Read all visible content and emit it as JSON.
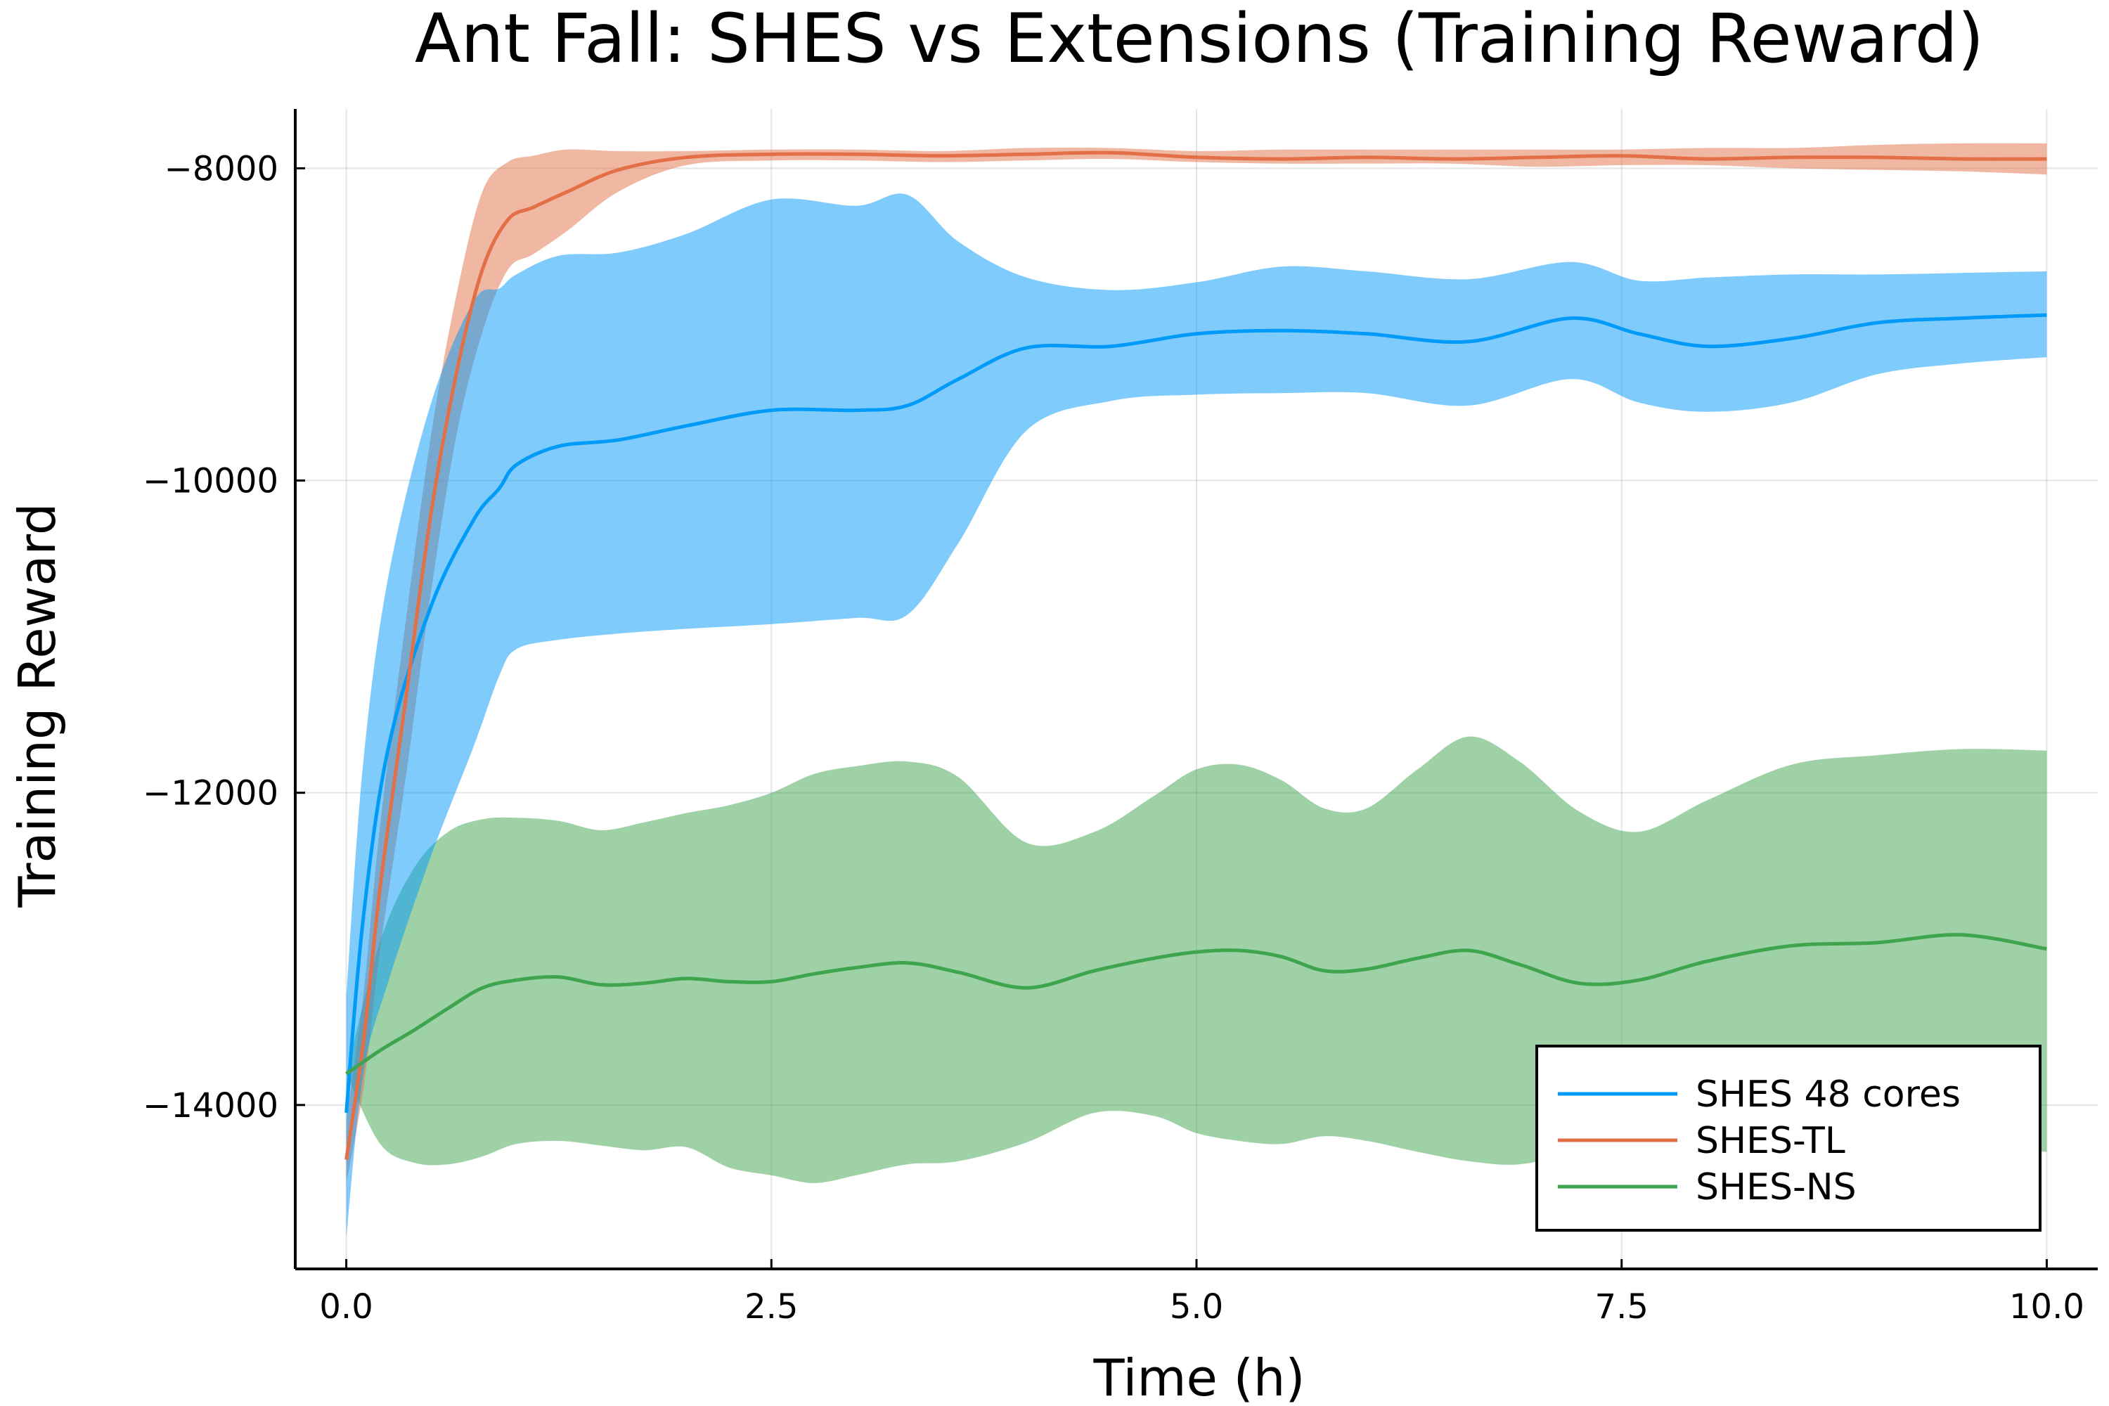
{
  "chart_data": {
    "type": "line",
    "title": "Ant Fall: SHES vs Extensions (Training Reward)",
    "xlabel": "Time (h)",
    "ylabel": "Training Reward",
    "xlim": [
      -0.3,
      10.3
    ],
    "ylim": [
      -15050,
      -7620
    ],
    "xticks": [
      0.0,
      2.5,
      5.0,
      7.5,
      10.0
    ],
    "xtick_labels": [
      "0.0",
      "2.5",
      "5.0",
      "7.5",
      "10.0"
    ],
    "yticks": [
      -14000,
      -12000,
      -10000,
      -8000
    ],
    "ytick_labels": [
      "−14000",
      "−12000",
      "−10000",
      "−8000"
    ],
    "grid": true,
    "legend": {
      "position": "bottom-right"
    },
    "series": [
      {
        "name": "SHES 48 cores",
        "color": "#009af9",
        "band_color": "#009af9",
        "band_opacity": 0.5,
        "x": [
          0.0,
          0.1,
          0.25,
          0.5,
          0.75,
          0.9,
          1.0,
          1.25,
          1.6,
          2.0,
          2.5,
          3.0,
          3.3,
          3.6,
          4.0,
          4.5,
          5.0,
          5.5,
          6.0,
          6.6,
          7.2,
          7.6,
          8.0,
          8.5,
          9.0,
          9.5,
          10.0
        ],
        "mean": [
          -14050,
          -12800,
          -11700,
          -10800,
          -10250,
          -10050,
          -9900,
          -9780,
          -9740,
          -9650,
          -9550,
          -9550,
          -9520,
          -9350,
          -9150,
          -9140,
          -9060,
          -9040,
          -9060,
          -9110,
          -8960,
          -9060,
          -9140,
          -9090,
          -8990,
          -8960,
          -8940
        ],
        "lower": [
          -14850,
          -13800,
          -13200,
          -12400,
          -11700,
          -11250,
          -11080,
          -11020,
          -10980,
          -10950,
          -10920,
          -10880,
          -10860,
          -10400,
          -9680,
          -9490,
          -9450,
          -9440,
          -9440,
          -9520,
          -9350,
          -9500,
          -9560,
          -9500,
          -9320,
          -9250,
          -9210
        ],
        "upper": [
          -13300,
          -11800,
          -10600,
          -9500,
          -8850,
          -8770,
          -8680,
          -8560,
          -8540,
          -8420,
          -8200,
          -8240,
          -8170,
          -8470,
          -8700,
          -8780,
          -8730,
          -8630,
          -8660,
          -8710,
          -8600,
          -8720,
          -8700,
          -8680,
          -8680,
          -8670,
          -8660
        ]
      },
      {
        "name": "SHES-TL",
        "color": "#e26f46",
        "band_color": "#e26f46",
        "band_opacity": 0.5,
        "x": [
          0.0,
          0.1,
          0.2,
          0.35,
          0.5,
          0.65,
          0.8,
          0.95,
          1.1,
          1.3,
          1.6,
          2.0,
          2.5,
          3.0,
          3.5,
          4.0,
          4.5,
          5.0,
          5.5,
          6.0,
          6.5,
          7.0,
          7.5,
          8.0,
          8.5,
          9.0,
          9.5,
          10.0
        ],
        "mean": [
          -14350,
          -13600,
          -12600,
          -11400,
          -10200,
          -9300,
          -8650,
          -8330,
          -8250,
          -8150,
          -8010,
          -7930,
          -7910,
          -7910,
          -7920,
          -7910,
          -7900,
          -7930,
          -7940,
          -7930,
          -7940,
          -7930,
          -7920,
          -7940,
          -7930,
          -7930,
          -7940,
          -7940
        ],
        "lower": [
          -14500,
          -13900,
          -13000,
          -11900,
          -10700,
          -9700,
          -9050,
          -8650,
          -8550,
          -8400,
          -8150,
          -7980,
          -7950,
          -7950,
          -7960,
          -7950,
          -7940,
          -7960,
          -7970,
          -7970,
          -7970,
          -7990,
          -7980,
          -7980,
          -8000,
          -8010,
          -8020,
          -8040
        ],
        "upper": [
          -14100,
          -13300,
          -12200,
          -10900,
          -9700,
          -8800,
          -8150,
          -7960,
          -7920,
          -7880,
          -7890,
          -7890,
          -7880,
          -7880,
          -7890,
          -7870,
          -7870,
          -7890,
          -7880,
          -7880,
          -7880,
          -7880,
          -7880,
          -7870,
          -7870,
          -7850,
          -7840,
          -7840
        ]
      },
      {
        "name": "SHES-NS",
        "color": "#3ea44e",
        "band_color": "#3ea44e",
        "band_opacity": 0.5,
        "x": [
          0.0,
          0.2,
          0.4,
          0.6,
          0.8,
          1.0,
          1.25,
          1.5,
          1.75,
          2.0,
          2.25,
          2.5,
          2.75,
          3.0,
          3.3,
          3.6,
          4.0,
          4.4,
          4.75,
          5.0,
          5.25,
          5.5,
          5.75,
          6.0,
          6.3,
          6.6,
          6.9,
          7.25,
          7.6,
          8.0,
          8.5,
          9.0,
          9.5,
          10.0
        ],
        "mean": [
          -13800,
          -13650,
          -13520,
          -13380,
          -13250,
          -13200,
          -13180,
          -13230,
          -13220,
          -13190,
          -13210,
          -13210,
          -13160,
          -13120,
          -13090,
          -13150,
          -13250,
          -13140,
          -13060,
          -13020,
          -13010,
          -13050,
          -13140,
          -13130,
          -13060,
          -13010,
          -13100,
          -13220,
          -13200,
          -13080,
          -12980,
          -12960,
          -12910,
          -13000
        ],
        "lower": [
          -13800,
          -14250,
          -14370,
          -14380,
          -14330,
          -14250,
          -14230,
          -14260,
          -14290,
          -14270,
          -14400,
          -14450,
          -14500,
          -14450,
          -14380,
          -14360,
          -14240,
          -14050,
          -14070,
          -14180,
          -14230,
          -14250,
          -14200,
          -14230,
          -14300,
          -14360,
          -14380,
          -14300,
          -14250,
          -14300,
          -14400,
          -14270,
          -14280,
          -14300
        ],
        "upper": [
          -13800,
          -12950,
          -12480,
          -12250,
          -12170,
          -12160,
          -12180,
          -12240,
          -12190,
          -12130,
          -12080,
          -12000,
          -11880,
          -11830,
          -11800,
          -11900,
          -12320,
          -12250,
          -12020,
          -11850,
          -11820,
          -11920,
          -12100,
          -12100,
          -11850,
          -11640,
          -11800,
          -12120,
          -12250,
          -12050,
          -11820,
          -11760,
          -11720,
          -11730
        ]
      }
    ]
  }
}
